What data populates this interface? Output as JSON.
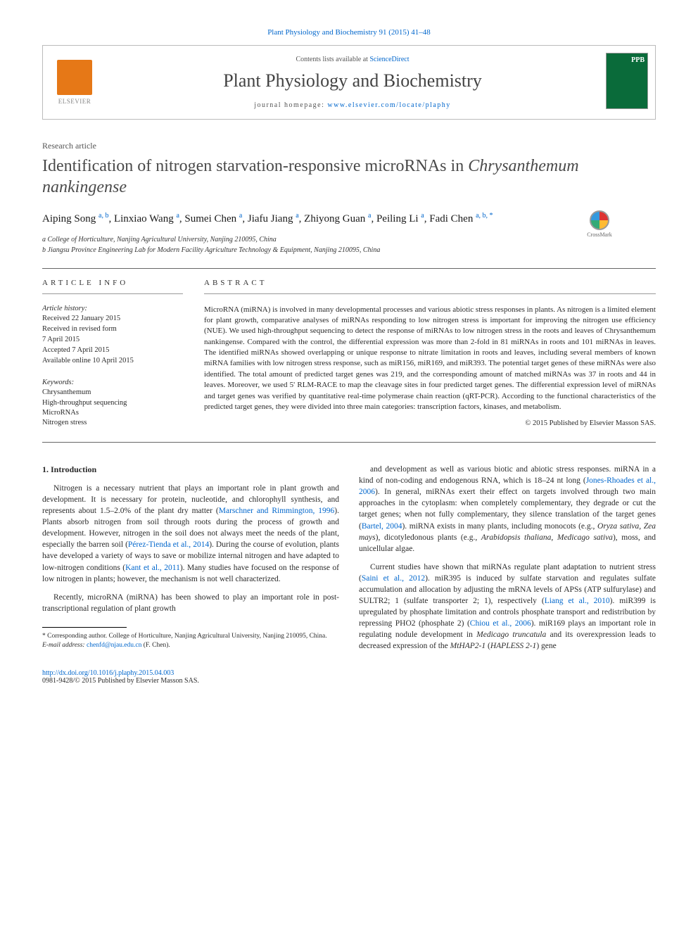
{
  "citation": "Plant Physiology and Biochemistry 91 (2015) 41–48",
  "header": {
    "contents": "Contents lists available at ",
    "sd": "ScienceDirect",
    "journal": "Plant Physiology and Biochemistry",
    "homepage_prefix": "journal homepage: ",
    "homepage": "www.elsevier.com/locate/plaphy",
    "elsevier": "ELSEVIER",
    "cover_abbr": "PPB"
  },
  "article_type": "Research article",
  "title_part1": "Identification of nitrogen starvation-responsive microRNAs in ",
  "title_part2": "Chrysanthemum nankingense",
  "crossmark": "CrossMark",
  "authors": {
    "a1_name": "Aiping Song ",
    "a1_sup": "a, b",
    "a2_name": ", Linxiao Wang ",
    "a2_sup": "a",
    "a3_name": ", Sumei Chen ",
    "a3_sup": "a",
    "a4_name": ", Jiafu Jiang ",
    "a4_sup": "a",
    "a5_name": ", Zhiyong Guan ",
    "a5_sup": "a",
    "a6_name": ", Peiling Li ",
    "a6_sup": "a",
    "a7_name": ", Fadi Chen ",
    "a7_sup": "a, b, *"
  },
  "affiliations": {
    "a": "a College of Horticulture, Nanjing Agricultural University, Nanjing 210095, China",
    "b": "b Jiangsu Province Engineering Lab for Modern Facility Agriculture Technology & Equipment, Nanjing 210095, China"
  },
  "info_header": "ARTICLE INFO",
  "abstract_header": "ABSTRACT",
  "history": {
    "label": "Article history:",
    "h1": "Received 22 January 2015",
    "h2": "Received in revised form",
    "h3": "7 April 2015",
    "h4": "Accepted 7 April 2015",
    "h5": "Available online 10 April 2015"
  },
  "keywords": {
    "label": "Keywords:",
    "k1": "Chrysanthemum",
    "k2": "High-throughput sequencing",
    "k3": "MicroRNAs",
    "k4": "Nitrogen stress"
  },
  "abstract_text": "MicroRNA (miRNA) is involved in many developmental processes and various abiotic stress responses in plants. As nitrogen is a limited element for plant growth, comparative analyses of miRNAs responding to low nitrogen stress is important for improving the nitrogen use efficiency (NUE). We used high-throughput sequencing to detect the response of miRNAs to low nitrogen stress in the roots and leaves of Chrysanthemum nankingense. Compared with the control, the differential expression was more than 2-fold in 81 miRNAs in roots and 101 miRNAs in leaves. The identified miRNAs showed overlapping or unique response to nitrate limitation in roots and leaves, including several members of known miRNA families with low nitrogen stress response, such as miR156, miR169, and miR393. The potential target genes of these miRNAs were also identified. The total amount of predicted target genes was 219, and the corresponding amount of matched miRNAs was 37 in roots and 44 in leaves. Moreover, we used 5' RLM-RACE to map the cleavage sites in four predicted target genes. The differential expression level of miRNAs and target genes was verified by quantitative real-time polymerase chain reaction (qRT-PCR). According to the functional characteristics of the predicted target genes, they were divided into three main categories: transcription factors, kinases, and metabolism.",
  "copyright": "© 2015 Published by Elsevier Masson SAS.",
  "section_1": "1. Introduction",
  "para1_a": "Nitrogen is a necessary nutrient that plays an important role in plant growth and development. It is necessary for protein, nucleotide, and chlorophyll synthesis, and represents about 1.5–2.0% of the plant dry matter (",
  "para1_r1": "Marschner and Rimmington, 1996",
  "para1_b": "). Plants absorb nitrogen from soil through roots during the process of growth and development. However, nitrogen in the soil does not always meet the needs of the plant, especially the barren soil (",
  "para1_r2": "Pérez-Tienda et al., 2014",
  "para1_c": "). During the course of evolution, plants have developed a variety of ways to save or mobilize internal nitrogen and have adapted to low-nitrogen conditions (",
  "para1_r3": "Kant et al., 2011",
  "para1_d": "). Many studies have focused on the response of low nitrogen in plants; however, the mechanism is not well characterized.",
  "para2": "Recently, microRNA (miRNA) has been showed to play an important role in post-transcriptional regulation of plant growth",
  "para3_a": "and development as well as various biotic and abiotic stress responses. miRNA in a kind of non-coding and endogenous RNA, which is 18–24 nt long (",
  "para3_r1": "Jones-Rhoades et al., 2006",
  "para3_b": "). In general, miRNAs exert their effect on targets involved through two main approaches in the cytoplasm: when completely complementary, they degrade or cut the target genes; when not fully complementary, they silence translation of the target genes (",
  "para3_r2": "Bartel, 2004",
  "para3_c": "). miRNA exists in many plants, including monocots (e.g., ",
  "para3_i1": "Oryza sativa, Zea mays",
  "para3_d": "), dicotyledonous plants (e.g., ",
  "para3_i2": "Arabidopsis thaliana, Medicago sativa",
  "para3_e": "), moss, and unicellular algae.",
  "para4_a": "Current studies have shown that miRNAs regulate plant adaptation to nutrient stress (",
  "para4_r1": "Saini et al., 2012",
  "para4_b": "). miR395 is induced by sulfate starvation and regulates sulfate accumulation and allocation by adjusting the mRNA levels of APSs (ATP sulfurylase) and SULTR2; 1 (sulfate transporter 2; 1), respectively (",
  "para4_r2": "Liang et al., 2010",
  "para4_c": "). miR399 is upregulated by phosphate limitation and controls phosphate transport and redistribution by repressing PHO2 (phosphate 2) (",
  "para4_r3": "Chiou et al., 2006",
  "para4_d": "). miR169 plays an important role in regulating nodule development in ",
  "para4_i1": "Medicago truncatula",
  "para4_e": " and its overexpression leads to decreased expression of the ",
  "para4_i2": "MtHAP2-1",
  "para4_f": " (",
  "para4_i3": "HAPLESS 2-1",
  "para4_g": ") gene",
  "footnote": {
    "corr": "* Corresponding author. College of Horticulture, Nanjing Agricultural University, Nanjing 210095, China.",
    "email_label": "E-mail address: ",
    "email": "chenfd@njau.edu.cn",
    "email_suffix": " (F. Chen)."
  },
  "footer": {
    "doi": "http://dx.doi.org/10.1016/j.plaphy.2015.04.003",
    "issn": "0981-9428/© 2015 Published by Elsevier Masson SAS."
  },
  "colors": {
    "link": "#0066cc",
    "elsevier_orange": "#e67817",
    "cover_green": "#0a6b3a"
  }
}
